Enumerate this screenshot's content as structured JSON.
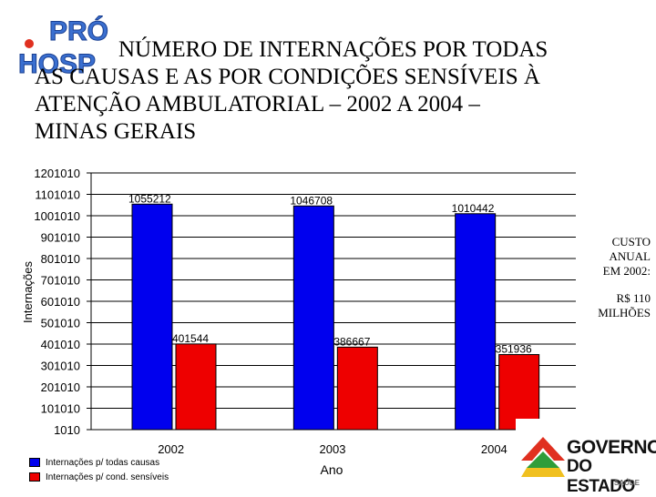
{
  "logo_left": {
    "line1": "PRÓ",
    "line2": "HOSP"
  },
  "title_lines": [
    "NÚMERO DE INTERNAÇÕES POR TODAS",
    "AS CAUSAS E AS POR CONDIÇÕES SENSÍVEIS À",
    "ATENÇÃO AMBULATORIAL – 2002 A 2004 –",
    "MINAS GERAIS"
  ],
  "custo_note": {
    "lines": [
      "CUSTO",
      "ANUAL",
      "EM 2002:"
    ],
    "value_lines": [
      "R$ 110",
      "MILHÕES"
    ]
  },
  "logo_right": {
    "line1": "GOVERNO",
    "line2": "DO ESTADO",
    "line3": "SAÚDE"
  },
  "colors": {
    "series1": "#0000ee",
    "series2": "#ee0000",
    "grid": "#000000"
  },
  "chart_data": {
    "type": "bar",
    "title": "NÚMERO DE INTERNAÇÕES POR TODAS AS CAUSAS E AS POR CONDIÇÕES SENSÍVEIS À ATENÇÃO AMBULATORIAL – 2002 A 2004 – MINAS GERAIS",
    "xlabel": "Ano",
    "ylabel": "Internações",
    "categories": [
      "2002",
      "2003",
      "2004"
    ],
    "series": [
      {
        "name": "Internações p/ todas causas",
        "values": [
          1055212,
          1046708,
          1010442
        ],
        "labels": [
          "1055212",
          "1046708",
          "1010442"
        ]
      },
      {
        "name": "Internações p/ cond. sensíveis",
        "values": [
          401544,
          386667,
          351936
        ],
        "labels": [
          "401544",
          "386667",
          "351936"
        ]
      }
    ],
    "yticks": [
      "1010",
      "101010",
      "201010",
      "301010",
      "401010",
      "501010",
      "601010",
      "701010",
      "801010",
      "901010",
      "1001010",
      "1101010",
      "1201010"
    ],
    "ylim": [
      1010,
      1201010
    ],
    "grid": true,
    "legend": "bottom-left"
  }
}
